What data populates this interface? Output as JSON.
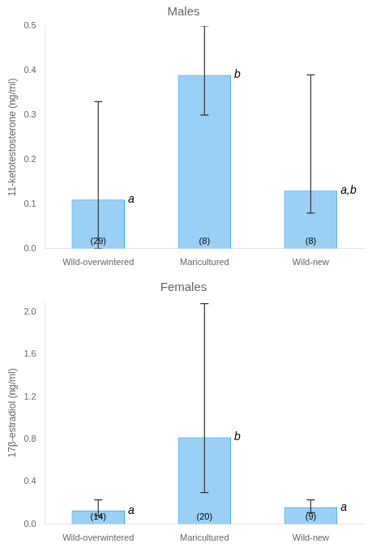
{
  "chart_data": [
    {
      "type": "bar",
      "title": "Males",
      "ylabel": "11-ketotestosterone (ng/ml)",
      "categories": [
        "Wild-overwintered",
        "Maricultured",
        "Wild-new"
      ],
      "values": [
        0.11,
        0.39,
        0.13
      ],
      "errors_upper": [
        0.22,
        0.11,
        0.26
      ],
      "errors_lower": [
        0.11,
        0.09,
        0.05
      ],
      "n_labels": [
        "(29)",
        "(8)",
        "(8)"
      ],
      "sig_labels": [
        "a",
        "b",
        "a,b"
      ],
      "ylim": [
        0,
        0.5
      ],
      "yticks": [
        {
          "value": 0.0,
          "label": "0.0"
        },
        0.1,
        0.2,
        0.3,
        0.4,
        0.5
      ],
      "grid": false
    },
    {
      "type": "bar",
      "title": "Females",
      "ylabel": "17β-estradiol (ng/ml)",
      "categories": [
        "Wild-overwintered",
        "Maricultured",
        "Wild-new"
      ],
      "values": [
        0.13,
        0.82,
        0.16
      ],
      "errors_upper": [
        0.1,
        1.26,
        0.07
      ],
      "errors_lower": [
        0.05,
        0.52,
        0.05
      ],
      "n_labels": [
        "(14)",
        "(20)",
        "(9)"
      ],
      "sig_labels": [
        "a",
        "b",
        "a"
      ],
      "ylim": [
        0,
        2.1
      ],
      "yticks": [
        {
          "value": 0.0,
          "label": "0.0"
        },
        0.4,
        0.8,
        1.2,
        1.6,
        {
          "value": 2.0,
          "label": "2.0"
        }
      ],
      "grid": false
    }
  ]
}
